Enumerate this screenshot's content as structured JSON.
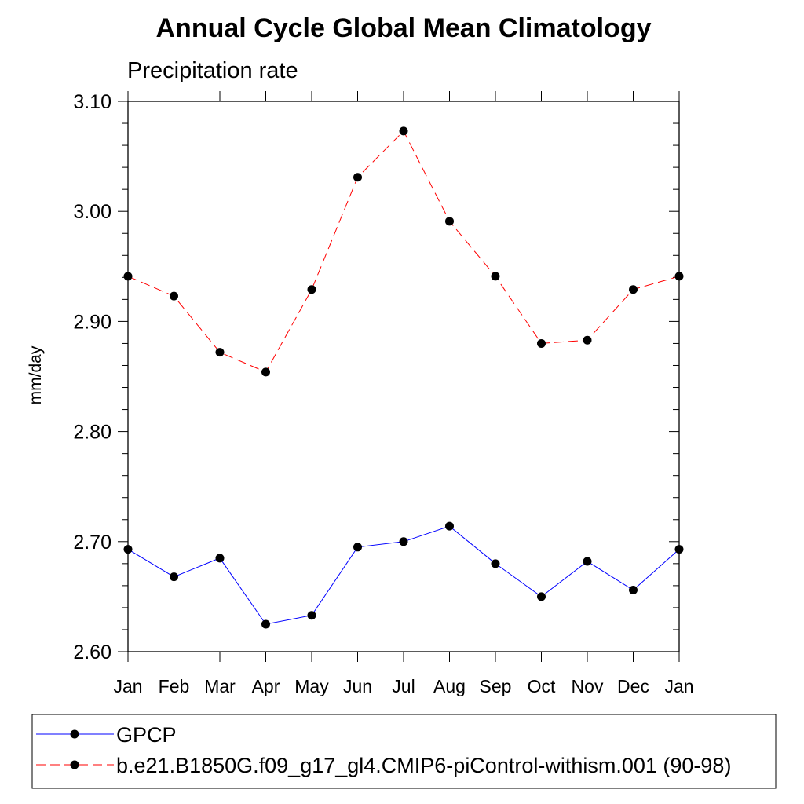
{
  "chart_data": {
    "type": "line",
    "title": "Annual Cycle Global Mean Climatology",
    "subtitle": "Precipitation rate",
    "xlabel": "",
    "ylabel": "mm/day",
    "categories": [
      "Jan",
      "Feb",
      "Mar",
      "Apr",
      "May",
      "Jun",
      "Jul",
      "Aug",
      "Sep",
      "Oct",
      "Nov",
      "Dec",
      "Jan"
    ],
    "ylim": [
      2.6,
      3.1
    ],
    "yticks": [
      "2.60",
      "2.70",
      "2.80",
      "2.90",
      "3.00",
      "3.10"
    ],
    "grid": false,
    "legend_position": "bottom",
    "series": [
      {
        "name": "GPCP",
        "color": "#0000ff",
        "dash": "solid",
        "marker": "filled-circle",
        "values": [
          2.693,
          2.668,
          2.685,
          2.625,
          2.633,
          2.695,
          2.7,
          2.714,
          2.68,
          2.65,
          2.682,
          2.656,
          2.693
        ]
      },
      {
        "name": "b.e21.B1850G.f09_g17_gl4.CMIP6-piControl-withism.001 (90-98)",
        "color": "#ff0000",
        "dash": "dashed",
        "marker": "filled-circle",
        "values": [
          2.941,
          2.923,
          2.872,
          2.854,
          2.929,
          3.031,
          3.073,
          2.991,
          2.941,
          2.88,
          2.883,
          2.929,
          2.941
        ]
      }
    ]
  }
}
